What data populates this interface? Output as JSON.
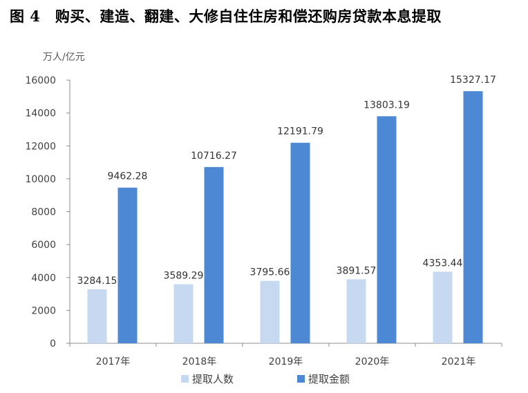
{
  "title": "图 4　购买、建造、翻建、大修自住住房和偿还购房贷款本息提取",
  "chart_data": {
    "type": "bar",
    "unit_label": "万人/亿元",
    "categories": [
      "2017年",
      "2018年",
      "2019年",
      "2020年",
      "2021年"
    ],
    "series": [
      {
        "name": "提取人数",
        "color": "#c7d9f1",
        "values": [
          3284.15,
          3589.29,
          3795.66,
          3891.57,
          4353.44
        ]
      },
      {
        "name": "提取金额",
        "color": "#4d88d4",
        "values": [
          9462.28,
          10716.27,
          12191.79,
          13803.19,
          15327.17
        ]
      }
    ],
    "ylim": [
      0,
      16000
    ],
    "yticks": [
      0,
      2000,
      4000,
      6000,
      8000,
      10000,
      12000,
      14000,
      16000
    ],
    "grid": false,
    "legend": "bottom"
  }
}
